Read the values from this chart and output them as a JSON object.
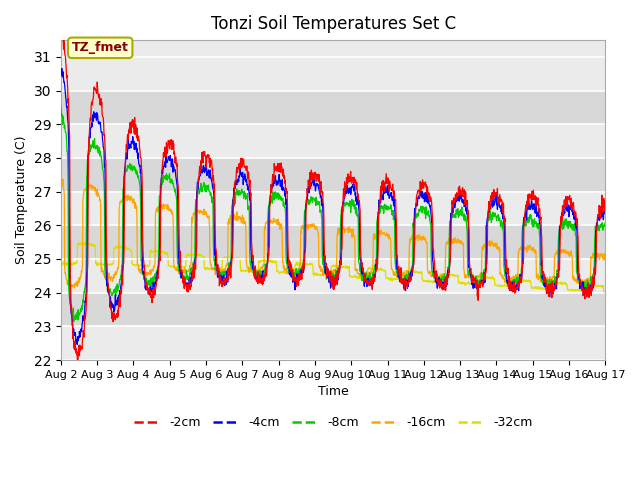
{
  "title": "Tonzi Soil Temperatures Set C",
  "xlabel": "Time",
  "ylabel": "Soil Temperature (C)",
  "ylim": [
    22.0,
    31.5
  ],
  "yticks": [
    22.0,
    23.0,
    24.0,
    25.0,
    26.0,
    27.0,
    28.0,
    29.0,
    30.0,
    31.0
  ],
  "colors": {
    "-2cm": "#FF0000",
    "-4cm": "#0000FF",
    "-8cm": "#00CC00",
    "-16cm": "#FFA500",
    "-32cm": "#DDDD00"
  },
  "legend_labels": [
    "-2cm",
    "-4cm",
    "-8cm",
    "-16cm",
    "-32cm"
  ],
  "annotation_text": "TZ_fmet",
  "bg_color_light": "#EBEBEB",
  "bg_color_dark": "#D8D8D8",
  "fig_bg": "#FFFFFF",
  "n_days": 15,
  "start_day": 2,
  "points_per_day": 96
}
